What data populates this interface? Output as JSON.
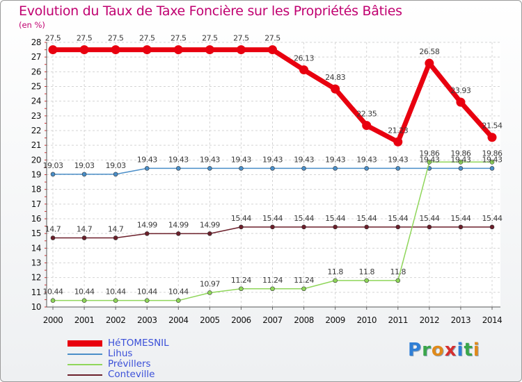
{
  "title": "Evolution du Taux de Taxe Foncière sur les Propriétés Bâties",
  "subtitle": "(en %)",
  "logo": {
    "text": "Proxiti",
    "letter_colors": [
      "#2f7fd6",
      "#3aa64a",
      "#e08a1a",
      "#d62f2f",
      "#2f7fd6",
      "#3aa64a",
      "#e08a1a"
    ]
  },
  "chart_data": {
    "type": "line",
    "title": "Evolution du Taux de Taxe Foncière sur les Propriétés Bâties",
    "ylabel": "(en %)",
    "xlabel": "",
    "categories": [
      "2000",
      "2001",
      "2002",
      "2003",
      "2004",
      "2005",
      "2006",
      "2007",
      "2008",
      "2009",
      "2010",
      "2011",
      "2012",
      "2013",
      "2014"
    ],
    "yticks": [
      "10",
      "11",
      "12",
      "13",
      "14",
      "15",
      "16",
      "17",
      "18",
      "19",
      "20",
      "21",
      "22",
      "23",
      "24",
      "25",
      "26",
      "27",
      "28"
    ],
    "ylim": [
      10,
      28
    ],
    "grid": true,
    "legend_position": "bottom-left",
    "series": [
      {
        "name": "HéTOMESNIL",
        "color": "#e8000f",
        "width": 7,
        "values": [
          27.5,
          27.5,
          27.5,
          27.5,
          27.5,
          27.5,
          27.5,
          27.5,
          26.13,
          24.83,
          22.35,
          21.23,
          26.58,
          23.93,
          21.54
        ],
        "labels": [
          "27.5",
          "27.5",
          "27.5",
          "27.5",
          "27.5",
          "27.5",
          "27.5",
          "27.5",
          "26.13",
          "24.83",
          "22.35",
          "21.23",
          "26.58",
          "23.93",
          "21.54"
        ]
      },
      {
        "name": "Lihus",
        "color": "#4a8ec8",
        "width": 1.5,
        "values": [
          19.03,
          19.03,
          19.03,
          19.43,
          19.43,
          19.43,
          19.43,
          19.43,
          19.43,
          19.43,
          19.43,
          19.43,
          19.43,
          19.43,
          19.43
        ],
        "labels": [
          "19.03",
          "19.03",
          "19.03",
          "19.43",
          "19.43",
          "19.43",
          "19.43",
          "19.43",
          "19.43",
          "19.43",
          "19.43",
          "19.43",
          "19.43",
          "19.43",
          "19.43"
        ]
      },
      {
        "name": "Prévillers",
        "color": "#8fd65a",
        "width": 1.5,
        "values": [
          10.44,
          10.44,
          10.44,
          10.44,
          10.44,
          10.97,
          11.24,
          11.24,
          11.24,
          11.8,
          11.8,
          11.8,
          19.86,
          19.86,
          19.86
        ],
        "labels": [
          "10.44",
          "10.44",
          "10.44",
          "10.44",
          "10.44",
          "10.97",
          "11.24",
          "11.24",
          "11.24",
          "11.8",
          "11.8",
          "11.8",
          "19.86",
          "19.86",
          "19.86"
        ]
      },
      {
        "name": "Conteville",
        "color": "#6b1f2a",
        "width": 1.5,
        "values": [
          14.7,
          14.7,
          14.7,
          14.99,
          14.99,
          14.99,
          15.44,
          15.44,
          15.44,
          15.44,
          15.44,
          15.44,
          15.44,
          15.44,
          15.44
        ],
        "labels": [
          "14.7",
          "14.7",
          "14.7",
          "14.99",
          "14.99",
          "14.99",
          "15.44",
          "15.44",
          "15.44",
          "15.44",
          "15.44",
          "15.44",
          "15.44",
          "15.44",
          "15.44"
        ]
      }
    ]
  }
}
